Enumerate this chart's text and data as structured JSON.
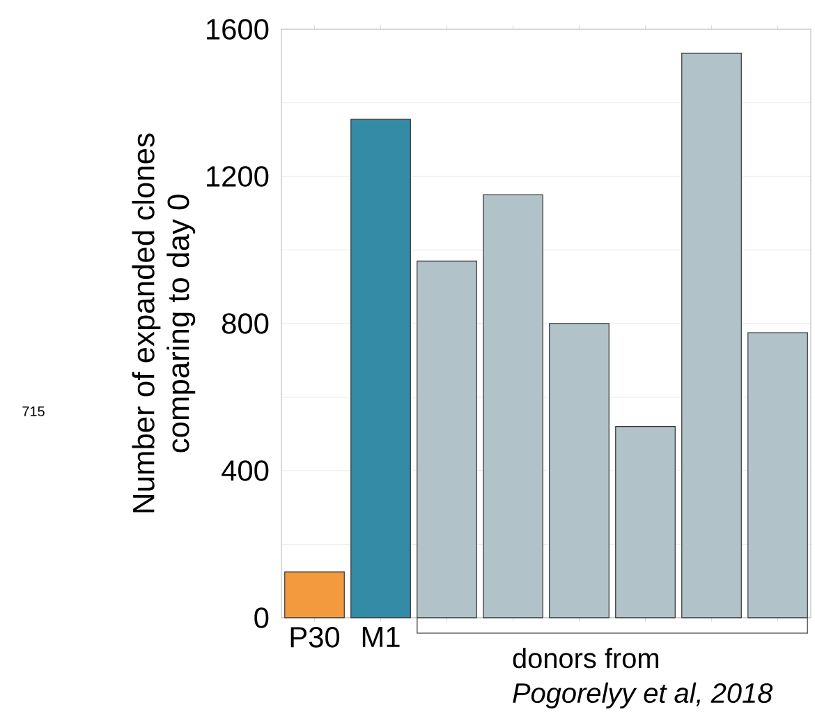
{
  "chart_data": {
    "type": "bar",
    "ylabel": "Number of expanded clones\ncomparing to day 0",
    "categories": [
      "P30",
      "M1",
      null,
      null,
      null,
      null,
      null,
      null
    ],
    "values": [
      125,
      1355,
      970,
      1150,
      800,
      520,
      1535,
      775
    ],
    "colors": [
      "#f39a3f",
      "#338ba6",
      "#b1c3c9",
      "#b1c3c9",
      "#b1c3c9",
      "#b1c3c9",
      "#b1c3c9",
      "#b1c3c9"
    ],
    "ylim": [
      0,
      1600
    ],
    "yticks": [
      0,
      {
        "value": 200,
        "label": null
      },
      400,
      {
        "value": 600,
        "label": null
      },
      800,
      {
        "value": 1000,
        "label": null
      },
      1200,
      {
        "value": 1400,
        "label": null
      },
      1600
    ],
    "grid": "y",
    "annotations": [
      "donors from\n*Pogorelyy et al, 2018*",
      "715"
    ]
  }
}
